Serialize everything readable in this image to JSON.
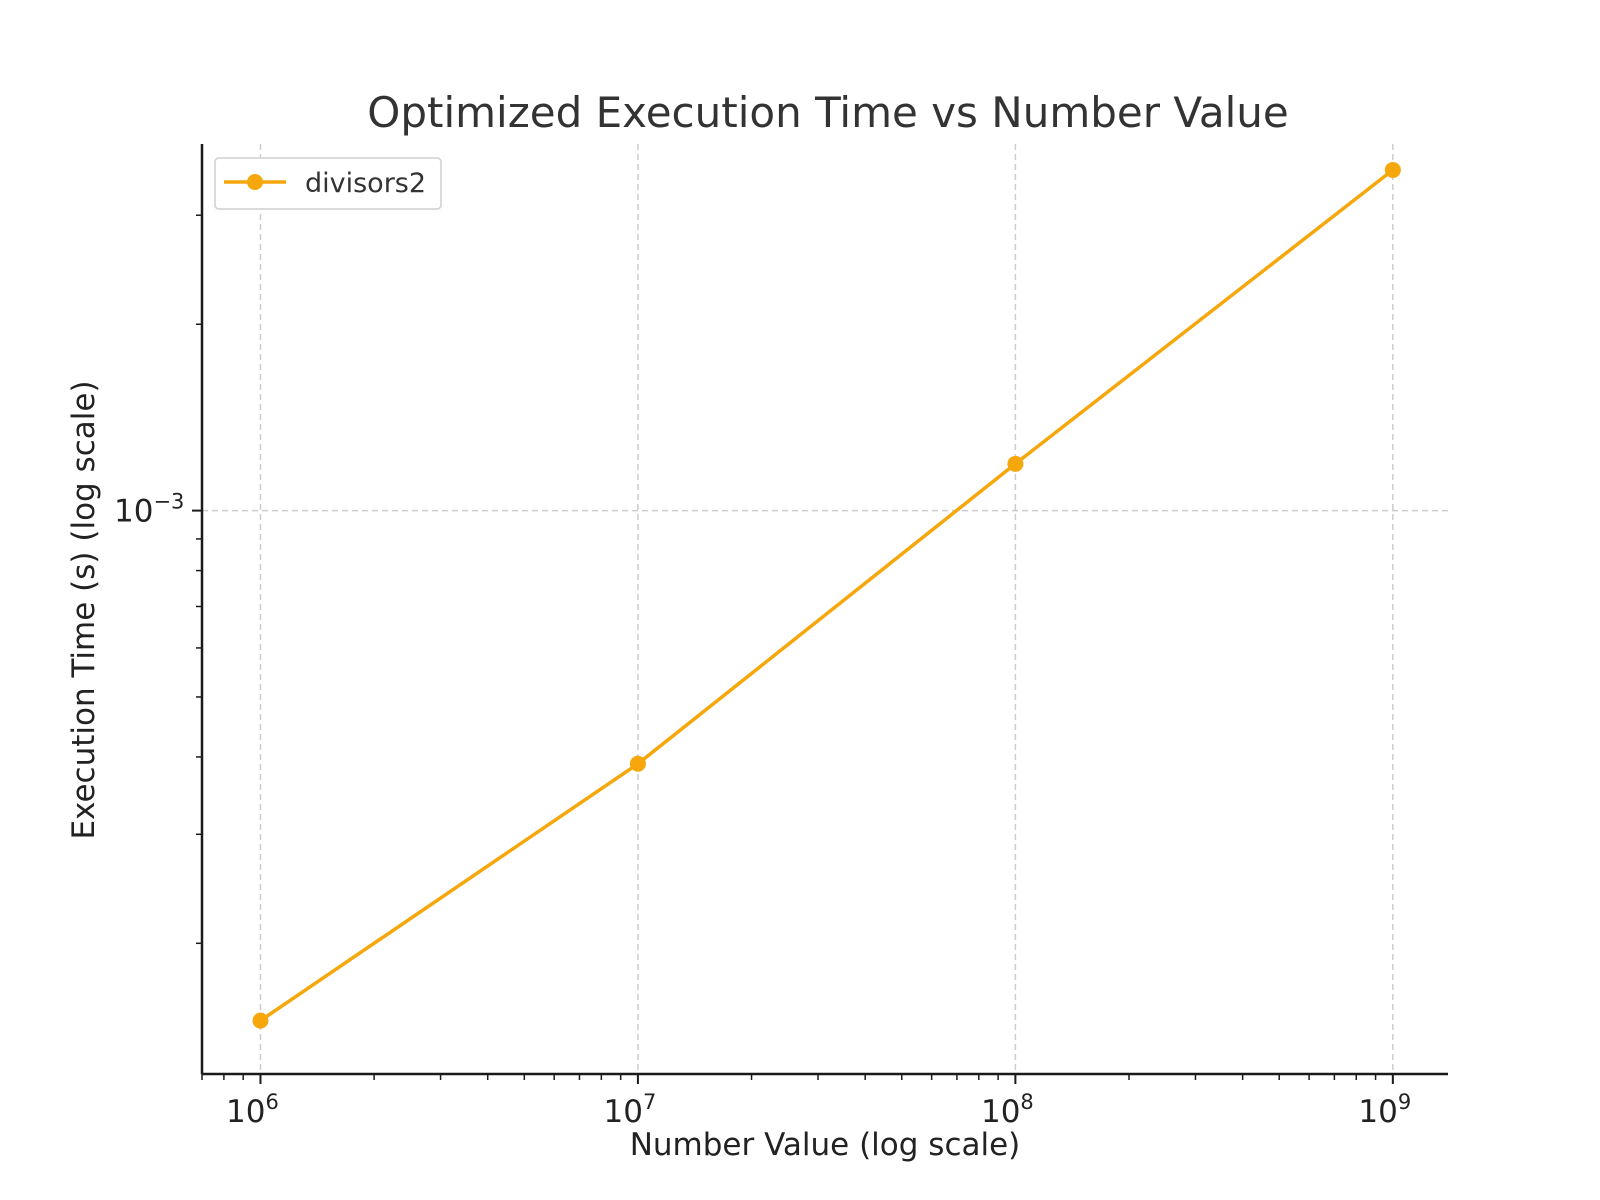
{
  "chart_data": {
    "type": "line",
    "title": "Optimized Execution Time vs Number Value",
    "xlabel": "Number Value (log scale)",
    "ylabel": "Execution Time (s) (log scale)",
    "xscale": "log",
    "yscale": "log",
    "xlim": [
      700000,
      1400000000
    ],
    "ylim": [
      0.000123,
      0.00391
    ],
    "x_ticks": [
      {
        "base": "10",
        "exp": "6",
        "value": 1000000
      },
      {
        "base": "10",
        "exp": "7",
        "value": 10000000
      },
      {
        "base": "10",
        "exp": "8",
        "value": 100000000
      },
      {
        "base": "10",
        "exp": "9",
        "value": 1000000000
      }
    ],
    "y_ticks": [
      {
        "base": "10",
        "exp": "−3",
        "value": 0.001
      }
    ],
    "grid": true,
    "legend": {
      "position": "top-left"
    },
    "series": [
      {
        "name": "divisors2",
        "color": "#f5a70c",
        "marker": "circle",
        "x": [
          1000000,
          10000000,
          100000000,
          1000000000
        ],
        "y": [
          0.00015,
          0.00039,
          0.00119,
          0.00355
        ]
      }
    ]
  }
}
